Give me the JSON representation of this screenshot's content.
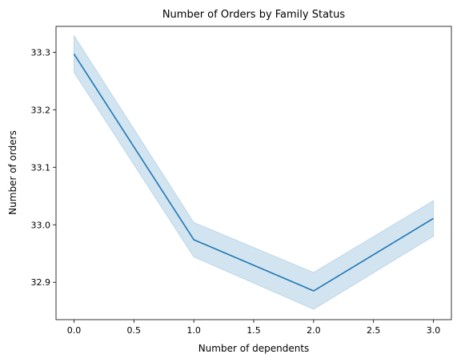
{
  "chart_data": {
    "type": "line",
    "title": "Number of Orders by Family Status",
    "xlabel": "Number of dependents",
    "ylabel": "Number of orders",
    "xlim": [
      -0.15,
      3.15
    ],
    "ylim": [
      32.835,
      33.345
    ],
    "xticks": [
      0.0,
      0.5,
      1.0,
      1.5,
      2.0,
      2.5,
      3.0
    ],
    "xtick_labels": [
      "0.0",
      "0.5",
      "1.0",
      "1.5",
      "2.0",
      "2.5",
      "3.0"
    ],
    "yticks": [
      32.9,
      33.0,
      33.1,
      33.2,
      33.3
    ],
    "ytick_labels": [
      "32.9",
      "33.0",
      "33.1",
      "33.2",
      "33.3"
    ],
    "grid": false,
    "legend": false,
    "series": [
      {
        "x": [
          0,
          1,
          2,
          3
        ],
        "y": [
          33.297,
          32.974,
          32.885,
          33.011
        ],
        "ci_lower": [
          33.265,
          32.944,
          32.853,
          32.98
        ],
        "ci_upper": [
          33.329,
          33.004,
          32.917,
          33.042
        ],
        "color": "#1f77b4",
        "band_color": "#1f77b4",
        "band_opacity": 0.2
      }
    ]
  }
}
